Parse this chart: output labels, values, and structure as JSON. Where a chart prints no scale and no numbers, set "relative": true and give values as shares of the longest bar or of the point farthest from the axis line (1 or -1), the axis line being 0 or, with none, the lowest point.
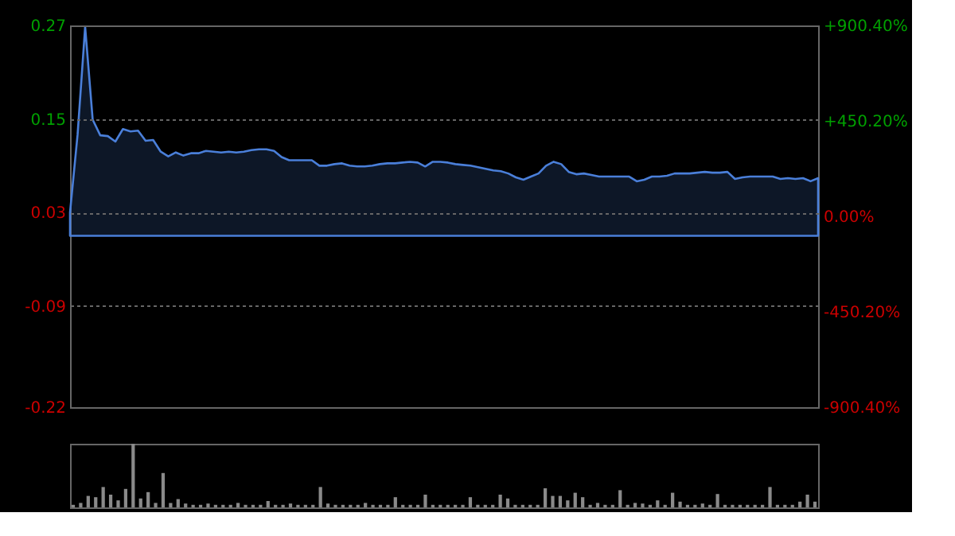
{
  "chart_data": [
    {
      "type": "area",
      "categories": [
        null,
        null,
        null,
        null,
        null,
        null,
        null,
        null,
        null,
        null,
        null,
        null,
        null,
        null,
        null,
        null,
        null,
        null,
        null,
        null,
        null,
        null,
        null,
        null,
        null,
        null,
        null,
        null,
        null,
        null,
        null,
        null,
        null,
        null,
        null,
        null,
        null,
        null,
        null,
        null,
        null,
        null,
        null,
        null,
        null,
        null,
        null,
        null,
        null,
        null,
        null,
        null,
        null,
        null,
        null,
        null,
        null,
        null,
        null,
        null,
        null,
        null,
        null,
        null,
        null,
        null,
        null,
        null,
        null,
        null,
        null,
        null,
        null,
        null,
        null,
        null,
        null,
        null,
        null,
        null,
        null,
        null,
        null,
        null,
        null,
        null,
        null,
        null,
        null,
        null,
        null,
        null,
        null,
        null,
        null,
        null,
        null,
        null,
        null,
        null
      ],
      "series": [
        {
          "color": "#4a7fd9",
          "values": [
            0.03,
            0.13,
            0.268,
            0.149,
            0.129,
            0.128,
            0.121,
            0.137,
            0.134,
            0.135,
            0.122,
            0.123,
            0.108,
            0.102,
            0.107,
            0.103,
            0.106,
            0.106,
            0.109,
            0.108,
            0.107,
            0.108,
            0.107,
            0.108,
            0.11,
            0.111,
            0.111,
            0.109,
            0.101,
            0.097,
            0.097,
            0.097,
            0.097,
            0.09,
            0.09,
            0.092,
            0.093,
            0.09,
            0.089,
            0.089,
            0.09,
            0.092,
            0.093,
            0.093,
            0.094,
            0.095,
            0.094,
            0.089,
            0.095,
            0.095,
            0.094,
            0.092,
            0.091,
            0.09,
            0.088,
            0.086,
            0.084,
            0.083,
            0.08,
            0.075,
            0.072,
            0.076,
            0.08,
            0.09,
            0.095,
            0.092,
            0.082,
            0.079,
            0.08,
            0.078,
            0.076,
            0.076,
            0.076,
            0.076,
            0.076,
            0.07,
            0.072,
            0.076,
            0.076,
            0.077,
            0.08,
            0.08,
            0.08,
            0.081,
            0.082,
            0.081,
            0.081,
            0.082,
            0.073,
            0.075,
            0.076,
            0.076,
            0.076,
            0.076,
            0.073,
            0.074,
            0.073,
            0.074,
            0.07,
            0.074
          ]
        }
      ],
      "ylim": [
        -0.22,
        0.27
      ],
      "yticks": [
        0.27,
        0.15,
        0.03,
        -0.09,
        -0.22
      ],
      "y2lim": [
        -900.4,
        900.4
      ],
      "y2ticks": [
        {
          "value": 900.4,
          "label": "+900.40%"
        },
        {
          "value": 450.2,
          "label": "+450.20%"
        },
        {
          "value": 0,
          "label": "0.00%"
        },
        {
          "value": -450.2,
          "label": "-450.20%"
        },
        {
          "value": -900.4,
          "label": "-900.40%"
        }
      ],
      "tick_labels": "y",
      "grid": "y"
    },
    {
      "type": "bar",
      "relative": true,
      "color": "#8a8a8a",
      "categories": [
        null,
        null,
        null,
        null,
        null,
        null,
        null,
        null,
        null,
        null,
        null,
        null,
        null,
        null,
        null,
        null,
        null,
        null,
        null,
        null,
        null,
        null,
        null,
        null,
        null,
        null,
        null,
        null,
        null,
        null,
        null,
        null,
        null,
        null,
        null,
        null,
        null,
        null,
        null,
        null,
        null,
        null,
        null,
        null,
        null,
        null,
        null,
        null,
        null,
        null,
        null,
        null,
        null,
        null,
        null,
        null,
        null,
        null,
        null,
        null,
        null,
        null,
        null,
        null,
        null,
        null,
        null,
        null,
        null,
        null,
        null,
        null,
        null,
        null,
        null,
        null,
        null,
        null,
        null,
        null,
        null,
        null,
        null,
        null,
        null,
        null,
        null,
        null,
        null,
        null,
        null,
        null,
        null,
        null,
        null,
        null,
        null,
        null,
        null,
        null
      ],
      "values": [
        0.04,
        0.07,
        0.18,
        0.16,
        0.32,
        0.2,
        0.11,
        0.29,
        1.0,
        0.14,
        0.24,
        0.07,
        0.54,
        0.07,
        0.13,
        0.06,
        0.04,
        0.04,
        0.06,
        0.04,
        0.04,
        0.04,
        0.07,
        0.04,
        0.04,
        0.04,
        0.1,
        0.04,
        0.04,
        0.06,
        0.04,
        0.04,
        0.04,
        0.32,
        0.06,
        0.04,
        0.04,
        0.04,
        0.04,
        0.07,
        0.04,
        0.04,
        0.04,
        0.16,
        0.04,
        0.04,
        0.04,
        0.2,
        0.04,
        0.04,
        0.04,
        0.04,
        0.04,
        0.16,
        0.04,
        0.04,
        0.04,
        0.2,
        0.14,
        0.04,
        0.04,
        0.04,
        0.04,
        0.3,
        0.18,
        0.18,
        0.11,
        0.23,
        0.16,
        0.04,
        0.07,
        0.04,
        0.04,
        0.27,
        0.04,
        0.07,
        0.06,
        0.04,
        0.11,
        0.04,
        0.23,
        0.09,
        0.04,
        0.04,
        0.06,
        0.04,
        0.21,
        0.04,
        0.04,
        0.04,
        0.04,
        0.04,
        0.04,
        0.32,
        0.04,
        0.04,
        0.04,
        0.09,
        0.2,
        0.09
      ]
    }
  ]
}
